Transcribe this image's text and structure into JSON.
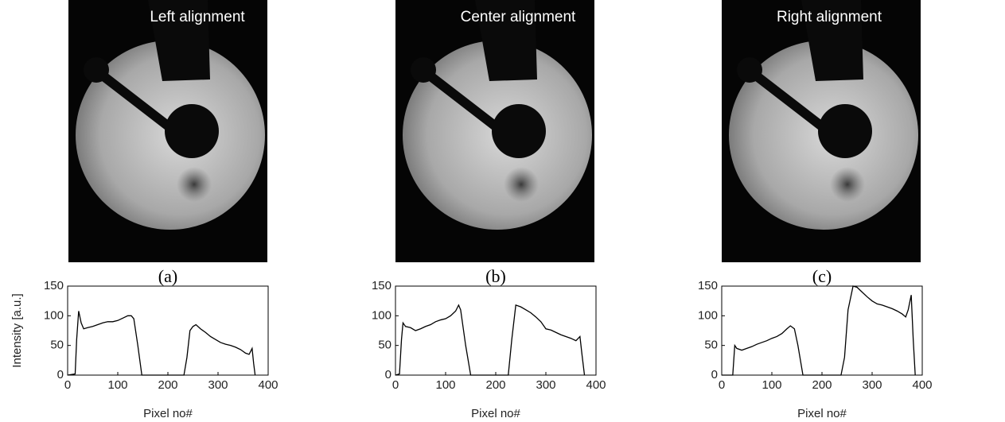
{
  "chart_data": [
    {
      "type": "line",
      "title": "Left alignment",
      "caption": "(a)",
      "xlabel": "Pixel no#",
      "ylabel": "Intensity [a.u.]",
      "x": [
        0,
        15,
        18,
        22,
        27,
        32,
        40,
        50,
        60,
        70,
        80,
        90,
        100,
        110,
        120,
        127,
        132,
        140,
        148,
        232,
        238,
        244,
        250,
        256,
        265,
        275,
        285,
        295,
        305,
        315,
        325,
        335,
        345,
        355,
        362,
        368,
        371,
        374
      ],
      "values": [
        0,
        2,
        60,
        108,
        88,
        78,
        80,
        82,
        85,
        88,
        90,
        90,
        92,
        96,
        100,
        100,
        95,
        50,
        0,
        0,
        30,
        75,
        82,
        85,
        78,
        72,
        65,
        60,
        55,
        52,
        50,
        47,
        43,
        37,
        35,
        45,
        20,
        0
      ],
      "color": "#000000",
      "xlim": [
        0,
        400
      ],
      "ylim": [
        0,
        150
      ],
      "xticks": [
        0,
        100,
        200,
        300,
        400
      ],
      "yticks": [
        0,
        50,
        100,
        150
      ]
    },
    {
      "type": "line",
      "title": "Center alignment",
      "caption": "(b)",
      "xlabel": "Pixel no#",
      "x": [
        0,
        8,
        12,
        15,
        20,
        30,
        40,
        50,
        60,
        70,
        80,
        90,
        100,
        110,
        120,
        126,
        130,
        140,
        150,
        225,
        232,
        240,
        250,
        260,
        270,
        280,
        290,
        300,
        310,
        320,
        330,
        340,
        350,
        360,
        368,
        372,
        377
      ],
      "values": [
        0,
        2,
        60,
        88,
        82,
        80,
        75,
        78,
        82,
        85,
        90,
        93,
        95,
        100,
        108,
        118,
        110,
        50,
        0,
        0,
        60,
        118,
        115,
        110,
        105,
        98,
        90,
        78,
        76,
        72,
        68,
        65,
        62,
        58,
        65,
        35,
        0
      ],
      "color": "#000000",
      "xlim": [
        0,
        400
      ],
      "ylim": [
        0,
        150
      ],
      "xticks": [
        0,
        100,
        200,
        300,
        400
      ],
      "yticks": [
        0,
        50,
        100,
        150
      ]
    },
    {
      "type": "line",
      "title": "Right alignment",
      "caption": "(c)",
      "xlabel": "Pixel no#",
      "x": [
        0,
        22,
        26,
        30,
        40,
        50,
        60,
        70,
        80,
        90,
        100,
        110,
        120,
        130,
        137,
        145,
        152,
        162,
        238,
        245,
        252,
        262,
        270,
        280,
        290,
        300,
        310,
        320,
        330,
        340,
        350,
        360,
        367,
        372,
        378,
        382,
        386
      ],
      "values": [
        0,
        0,
        50,
        45,
        42,
        45,
        48,
        52,
        55,
        58,
        62,
        65,
        70,
        78,
        83,
        78,
        50,
        0,
        0,
        30,
        110,
        150,
        148,
        140,
        132,
        125,
        120,
        118,
        115,
        112,
        108,
        103,
        98,
        110,
        135,
        60,
        0
      ],
      "color": "#000000",
      "xlim": [
        0,
        400
      ],
      "ylim": [
        0,
        150
      ],
      "xticks": [
        0,
        100,
        200,
        300,
        400
      ],
      "yticks": [
        0,
        50,
        100,
        150
      ]
    }
  ]
}
